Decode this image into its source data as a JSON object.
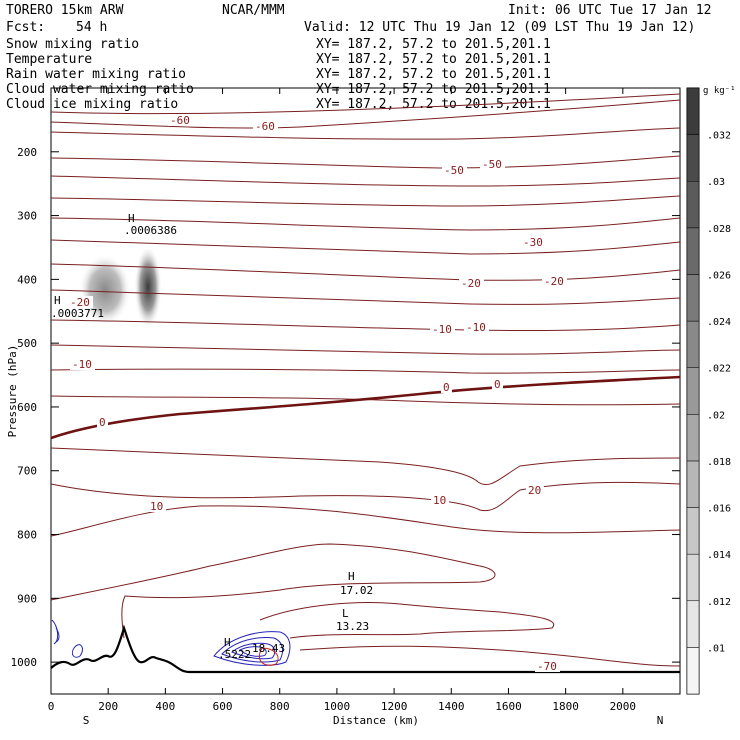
{
  "header": {
    "model": "TORERO  15km ARW",
    "org": "NCAR/MMM",
    "init": "Init: 06 UTC Tue 17 Jan 12",
    "fcst_label": "Fcst:",
    "fcst_value": "54 h",
    "valid": "Valid: 12 UTC Thu 19 Jan 12 (09 LST Thu 19 Jan 12)"
  },
  "fields": [
    {
      "name": "Snow mixing ratio",
      "xy": "XY= 187.2, 57.2 to 201.5,201.1",
      "color": "#000000"
    },
    {
      "name": "Temperature",
      "xy": "XY= 187.2, 57.2 to 201.5,201.1",
      "color": "#b00000"
    },
    {
      "name": "Rain water mixing ratio",
      "xy": "XY= 187.2, 57.2 to 201.5,201.1",
      "color": "#d40000"
    },
    {
      "name": "Cloud water mixing ratio",
      "xy": "XY= 187.2, 57.2 to 201.5,201.1",
      "color": "#1a1aa6"
    },
    {
      "name": "Cloud ice mixing ratio",
      "xy": "XY= 187.2, 57.2 to 201.5,201.1",
      "color": "#000000"
    }
  ],
  "colorbar": {
    "unit": "g kg⁻¹",
    "ticks": [
      ".01",
      ".012",
      ".014",
      ".016",
      ".018",
      ".02",
      ".022",
      ".024",
      ".026",
      ".028",
      ".03",
      ".032"
    ]
  },
  "chart_data": {
    "type": "cross-section contour",
    "xlabel": "Distance (km)",
    "ylabel": "Pressure (hPa)",
    "x_ticks": [
      0,
      200,
      400,
      600,
      800,
      1000,
      1200,
      1400,
      1600,
      1800,
      2000
    ],
    "y_ticks": [
      200,
      300,
      400,
      500,
      600,
      700,
      800,
      900,
      1000
    ],
    "xlim": [
      0,
      2200
    ],
    "ylim": [
      1050,
      100
    ],
    "end_labels": {
      "left": "S",
      "right": "N"
    },
    "temperature_labels": [
      "-60",
      "-60",
      "-50",
      "-50",
      "-30",
      "-20",
      "-20",
      "-20",
      "-10",
      "-10",
      "-10",
      "0",
      "0",
      "0",
      "10",
      "10",
      "20",
      "-70"
    ],
    "extrema": [
      {
        "kind": "H",
        "value": ".0006386"
      },
      {
        "kind": "H",
        "value": ".0003771"
      },
      {
        "kind": "H",
        "value": "17.02"
      },
      {
        "kind": "L",
        "value": "13.23"
      },
      {
        "kind": "H",
        "value": ".5222"
      },
      {
        "kind": "",
        "value": "18.43"
      }
    ]
  }
}
